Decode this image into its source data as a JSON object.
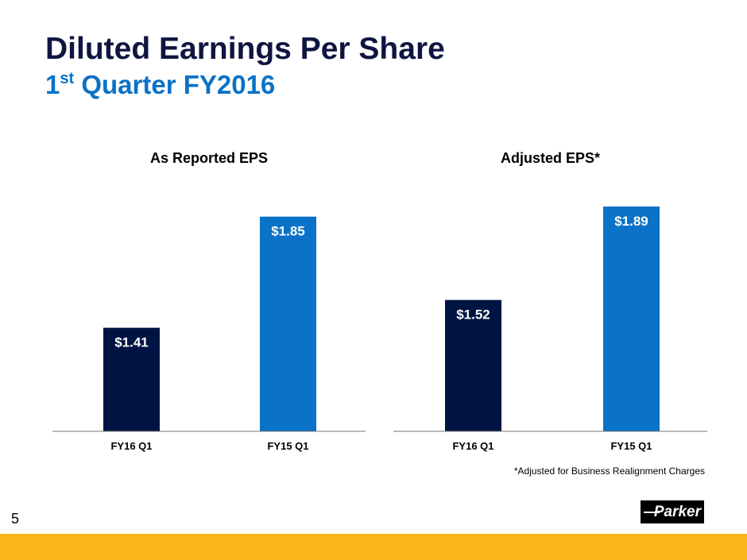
{
  "title": "Diluted Earnings Per Share",
  "subtitle": {
    "prefix": "1",
    "sup": "st",
    "rest": " Quarter FY2016"
  },
  "chart_data": [
    {
      "type": "bar",
      "title": "As Reported EPS",
      "categories": [
        "FY16 Q1",
        "FY15 Q1"
      ],
      "values": [
        1.41,
        1.85
      ],
      "labels": [
        "$1.41",
        "$1.85"
      ],
      "colors": [
        "#001443",
        "#0a72c7"
      ],
      "ylim": [
        1.0,
        2.0
      ],
      "grid": false
    },
    {
      "type": "bar",
      "title": "Adjusted EPS*",
      "categories": [
        "FY16 Q1",
        "FY15 Q1"
      ],
      "values": [
        1.52,
        1.89
      ],
      "labels": [
        "$1.52",
        "$1.89"
      ],
      "colors": [
        "#001443",
        "#0a72c7"
      ],
      "ylim": [
        1.0,
        2.0
      ],
      "grid": false
    }
  ],
  "footnote": "*Adjusted for Business Realignment Charges",
  "page_number": "5",
  "logo": "Parker"
}
